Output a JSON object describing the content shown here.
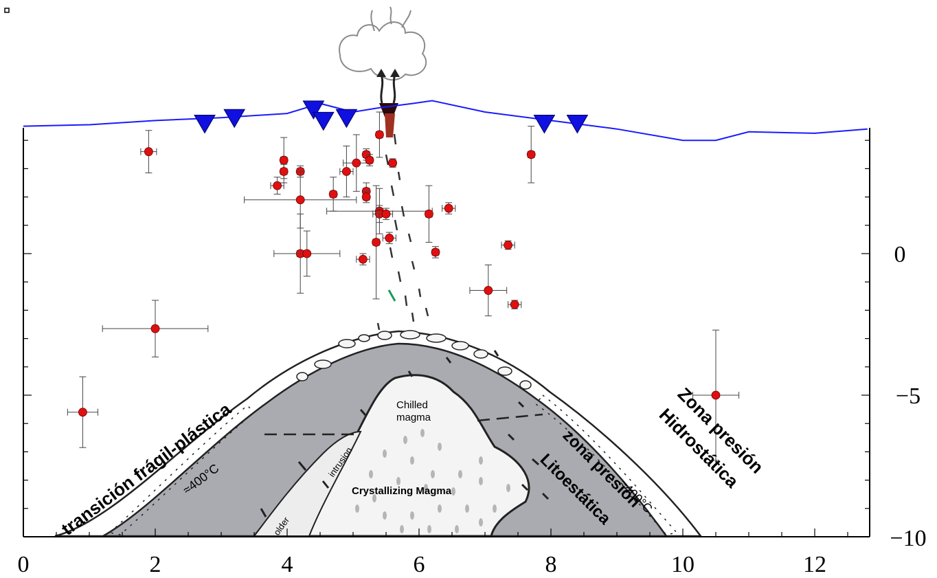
{
  "chart_data": {
    "type": "scatter",
    "x_ticks": [
      "0",
      "2",
      "4",
      "6",
      "8",
      "10",
      "12"
    ],
    "y_ticks": [
      "0",
      "−5",
      "−10"
    ],
    "xlim": [
      0,
      12.8
    ],
    "ylim": [
      -10,
      4.7
    ],
    "surface_profile": [
      [
        0,
        4.5
      ],
      [
        1,
        4.55
      ],
      [
        2,
        4.7
      ],
      [
        3,
        4.8
      ],
      [
        4,
        4.95
      ],
      [
        4.5,
        5.3
      ],
      [
        5,
        5.0
      ],
      [
        5.4,
        5.15
      ],
      [
        5.9,
        5.3
      ],
      [
        6.2,
        5.4
      ],
      [
        7,
        5.0
      ],
      [
        8,
        4.7
      ],
      [
        9,
        4.4
      ],
      [
        10,
        4.0
      ],
      [
        10.5,
        4.0
      ],
      [
        11,
        4.3
      ],
      [
        12,
        4.25
      ],
      [
        12.8,
        4.4
      ]
    ],
    "stations": [
      [
        2.75,
        4.6
      ],
      [
        3.2,
        4.8
      ],
      [
        4.4,
        5.1
      ],
      [
        4.55,
        4.7
      ],
      [
        4.9,
        4.8
      ],
      [
        7.9,
        4.6
      ],
      [
        8.4,
        4.6
      ]
    ],
    "points": [
      {
        "x": 1.9,
        "y": 3.6,
        "ex": 0.12,
        "ey": 0.75
      },
      {
        "x": 3.95,
        "y": 3.3,
        "ex": 0.05,
        "ey": 0.8
      },
      {
        "x": 3.95,
        "y": 2.9,
        "ex": 0.05,
        "ey": 0.25
      },
      {
        "x": 3.85,
        "y": 2.4,
        "ex": 0.1,
        "ey": 0.3
      },
      {
        "x": 4.2,
        "y": 2.9,
        "ex": 0.05,
        "ey": 0.2
      },
      {
        "x": 4.2,
        "y": 1.9,
        "ex": 0.85,
        "ey": 1.0
      },
      {
        "x": 4.2,
        "y": 0.0,
        "ex": 0.05,
        "ey": 1.4
      },
      {
        "x": 4.3,
        "y": 0.0,
        "ex": 0.5,
        "ey": 0.8
      },
      {
        "x": 4.7,
        "y": 2.1,
        "ex": 0.05,
        "ey": 0.6
      },
      {
        "x": 4.9,
        "y": 2.9,
        "ex": 0.1,
        "ey": 0.9
      },
      {
        "x": 5.05,
        "y": 3.2,
        "ex": 0.2,
        "ey": 1.0
      },
      {
        "x": 5.2,
        "y": 3.5,
        "ex": 0.05,
        "ey": 0.2
      },
      {
        "x": 5.2,
        "y": 2.2,
        "ex": 0.05,
        "ey": 0.3
      },
      {
        "x": 5.2,
        "y": 2.0,
        "ex": 0.05,
        "ey": 0.2
      },
      {
        "x": 5.25,
        "y": 3.3,
        "ex": 0.05,
        "ey": 0.2
      },
      {
        "x": 5.4,
        "y": 4.2,
        "ex": 0.05,
        "ey": 0.8
      },
      {
        "x": 5.4,
        "y": 1.5,
        "ex": 0.8,
        "ey": 0.8
      },
      {
        "x": 5.4,
        "y": 1.4,
        "ex": 0.1,
        "ey": 0.3
      },
      {
        "x": 5.5,
        "y": 1.4,
        "ex": 0.1,
        "ey": 0.2
      },
      {
        "x": 5.35,
        "y": 0.4,
        "ex": 0.05,
        "ey": 2.0
      },
      {
        "x": 5.55,
        "y": 0.55,
        "ex": 0.1,
        "ey": 0.2
      },
      {
        "x": 5.15,
        "y": -0.2,
        "ex": 0.1,
        "ey": 0.2
      },
      {
        "x": 5.6,
        "y": 3.2,
        "ex": 0.05,
        "ey": 0.15
      },
      {
        "x": 6.15,
        "y": 1.4,
        "ex": 0.05,
        "ey": 1.0
      },
      {
        "x": 6.25,
        "y": 0.05,
        "ex": 0.05,
        "ey": 0.2
      },
      {
        "x": 6.45,
        "y": 1.6,
        "ex": 0.1,
        "ey": 0.2
      },
      {
        "x": 7.05,
        "y": -1.3,
        "ex": 0.28,
        "ey": 0.9
      },
      {
        "x": 7.35,
        "y": 0.3,
        "ex": 0.1,
        "ey": 0.15
      },
      {
        "x": 7.45,
        "y": -1.8,
        "ex": 0.1,
        "ey": 0.15
      },
      {
        "x": 7.7,
        "y": 3.5,
        "ex": 0.05,
        "ey": 1.0
      },
      {
        "x": 2.0,
        "y": -2.65,
        "ex": 0.8,
        "ey": 1.0
      },
      {
        "x": 0.9,
        "y": -5.6,
        "ex": 0.23,
        "ey": 1.25
      },
      {
        "x": 10.5,
        "y": -5.0,
        "ex": 0.35,
        "ey": 2.3
      }
    ],
    "annotations": {
      "left_zone": "transición frágil-plástica",
      "iso_left": "≈400°C",
      "iso_right": "≈400°C",
      "chilled": "Chilled",
      "chilled2": "magma",
      "crystallizing": "Crystallizing Magma",
      "intrusion": "intrusion",
      "older": "older",
      "litho_zone1": "zona presión",
      "litho_zone2": "Litoestática",
      "hydro_zone1": "Zona presión",
      "hydro_zone2": "Hidrostática"
    },
    "colors": {
      "surface": "#1a1aff",
      "station": "#1010e0",
      "point": "#e01010",
      "magma_gray": "#a9abb0",
      "errorbar": "#444444"
    }
  }
}
